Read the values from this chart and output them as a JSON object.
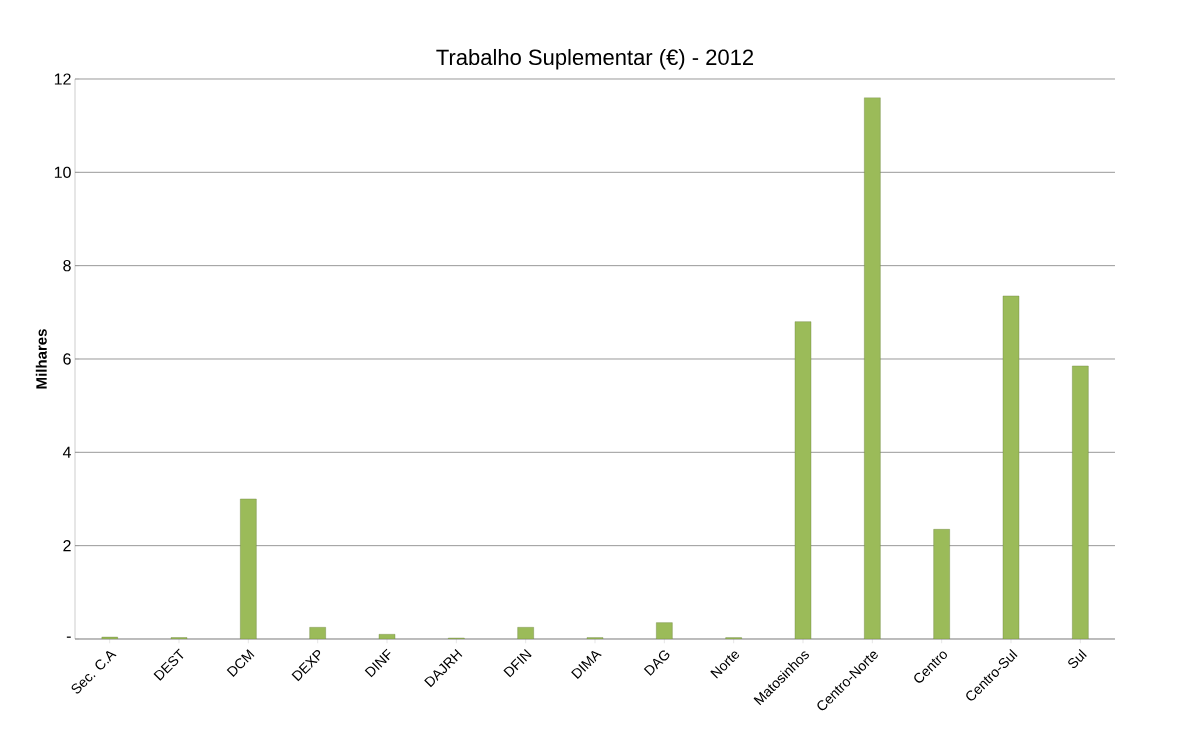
{
  "chart_data": {
    "type": "bar",
    "title": "Trabalho Suplementar (€) - 2012",
    "ylabel": "Milhares",
    "categories": [
      "Sec. C.A",
      "DEST",
      "DCM",
      "DEXP",
      "DINF",
      "DAJRH",
      "DFIN",
      "DIMA",
      "DAG",
      "Norte",
      "Matosinhos",
      "Centro-Norte",
      "Centro",
      "Centro-Sul",
      "Sul"
    ],
    "values": [
      0.04,
      0.03,
      3.0,
      0.25,
      0.1,
      0.02,
      0.25,
      0.03,
      0.35,
      0.03,
      6.8,
      11.6,
      2.35,
      7.35,
      5.85
    ],
    "color": "#9bbb59",
    "ylim": [
      0,
      12
    ],
    "yticks": [
      {
        "value": 0,
        "label": "-"
      },
      2,
      4,
      6,
      8,
      10,
      12
    ],
    "grid": "y"
  }
}
